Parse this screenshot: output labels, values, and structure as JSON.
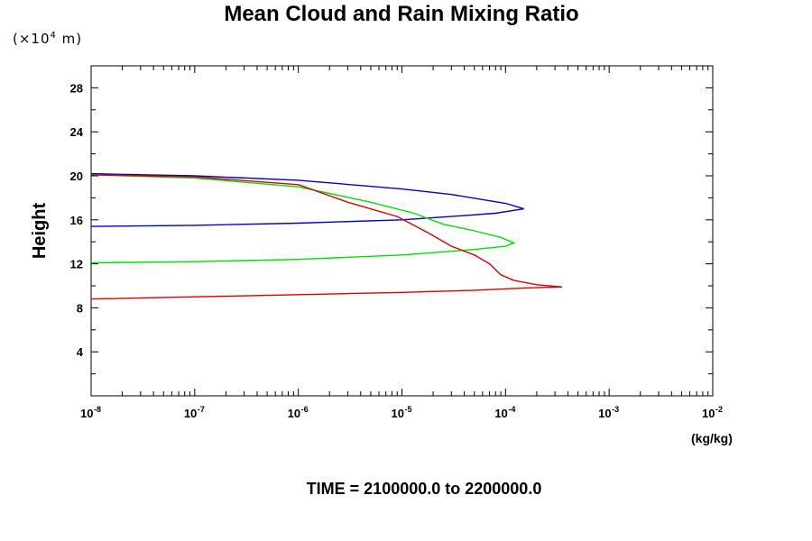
{
  "chart_data": {
    "type": "line",
    "title": "Mean Cloud and Rain Mixing Ratio",
    "ylabel": "Height",
    "y_units": "(×10",
    "y_units_exp": "4",
    "y_units_tail": " m)",
    "x_units": "(kg/kg)",
    "footer": "TIME = 2100000.0 to 2200000.0",
    "x_scale": "log",
    "xlim": [
      1e-08,
      0.01
    ],
    "ylim": [
      0,
      30
    ],
    "y_ticks": [
      "4",
      "8",
      "12",
      "16",
      "20",
      "24",
      "28"
    ],
    "x_ticks": [
      {
        "base": "10",
        "exp": "-8"
      },
      {
        "base": "10",
        "exp": "-7"
      },
      {
        "base": "10",
        "exp": "-6"
      },
      {
        "base": "10",
        "exp": "-5"
      },
      {
        "base": "10",
        "exp": "-4"
      },
      {
        "base": "10",
        "exp": "-3"
      },
      {
        "base": "10",
        "exp": "-2"
      }
    ],
    "series": [
      {
        "color": "#0000cc",
        "points": [
          [
            1e-08,
            15.4
          ],
          [
            1e-07,
            15.5
          ],
          [
            1e-06,
            15.7
          ],
          [
            1e-05,
            16.0
          ],
          [
            3e-05,
            16.3
          ],
          [
            8e-05,
            16.6
          ],
          [
            0.00015,
            17.0
          ],
          [
            0.0001,
            17.5
          ],
          [
            3e-05,
            18.3
          ],
          [
            1e-05,
            18.8
          ],
          [
            1e-06,
            19.6
          ],
          [
            1e-07,
            20.0
          ],
          [
            1e-08,
            20.2
          ]
        ]
      },
      {
        "color": "#00e000",
        "points": [
          [
            1e-08,
            12.1
          ],
          [
            1e-07,
            12.2
          ],
          [
            1e-06,
            12.4
          ],
          [
            1e-05,
            12.8
          ],
          [
            5e-05,
            13.3
          ],
          [
            0.0001,
            13.6
          ],
          [
            0.00012,
            13.9
          ],
          [
            9e-05,
            14.4
          ],
          [
            5e-05,
            15.0
          ],
          [
            2.5e-05,
            15.6
          ],
          [
            1.3e-05,
            16.6
          ],
          [
            5e-06,
            17.6
          ],
          [
            1e-06,
            19.0
          ],
          [
            1e-07,
            19.8
          ],
          [
            1e-08,
            20.1
          ]
        ]
      },
      {
        "color": "#e00000",
        "points": [
          [
            1e-08,
            8.8
          ],
          [
            1e-07,
            9.0
          ],
          [
            1e-06,
            9.2
          ],
          [
            1e-05,
            9.4
          ],
          [
            5e-05,
            9.6
          ],
          [
            0.00015,
            9.8
          ],
          [
            0.00035,
            9.9
          ],
          [
            0.0002,
            10.1
          ],
          [
            0.00012,
            10.5
          ],
          [
            9e-05,
            11.0
          ],
          [
            7e-05,
            12.0
          ],
          [
            5e-05,
            12.8
          ],
          [
            3e-05,
            13.6
          ],
          [
            1.8e-05,
            14.8
          ],
          [
            9e-06,
            16.3
          ],
          [
            3e-06,
            17.6
          ],
          [
            1e-06,
            19.2
          ],
          [
            1e-07,
            19.9
          ],
          [
            1e-08,
            20.1
          ]
        ]
      }
    ]
  }
}
